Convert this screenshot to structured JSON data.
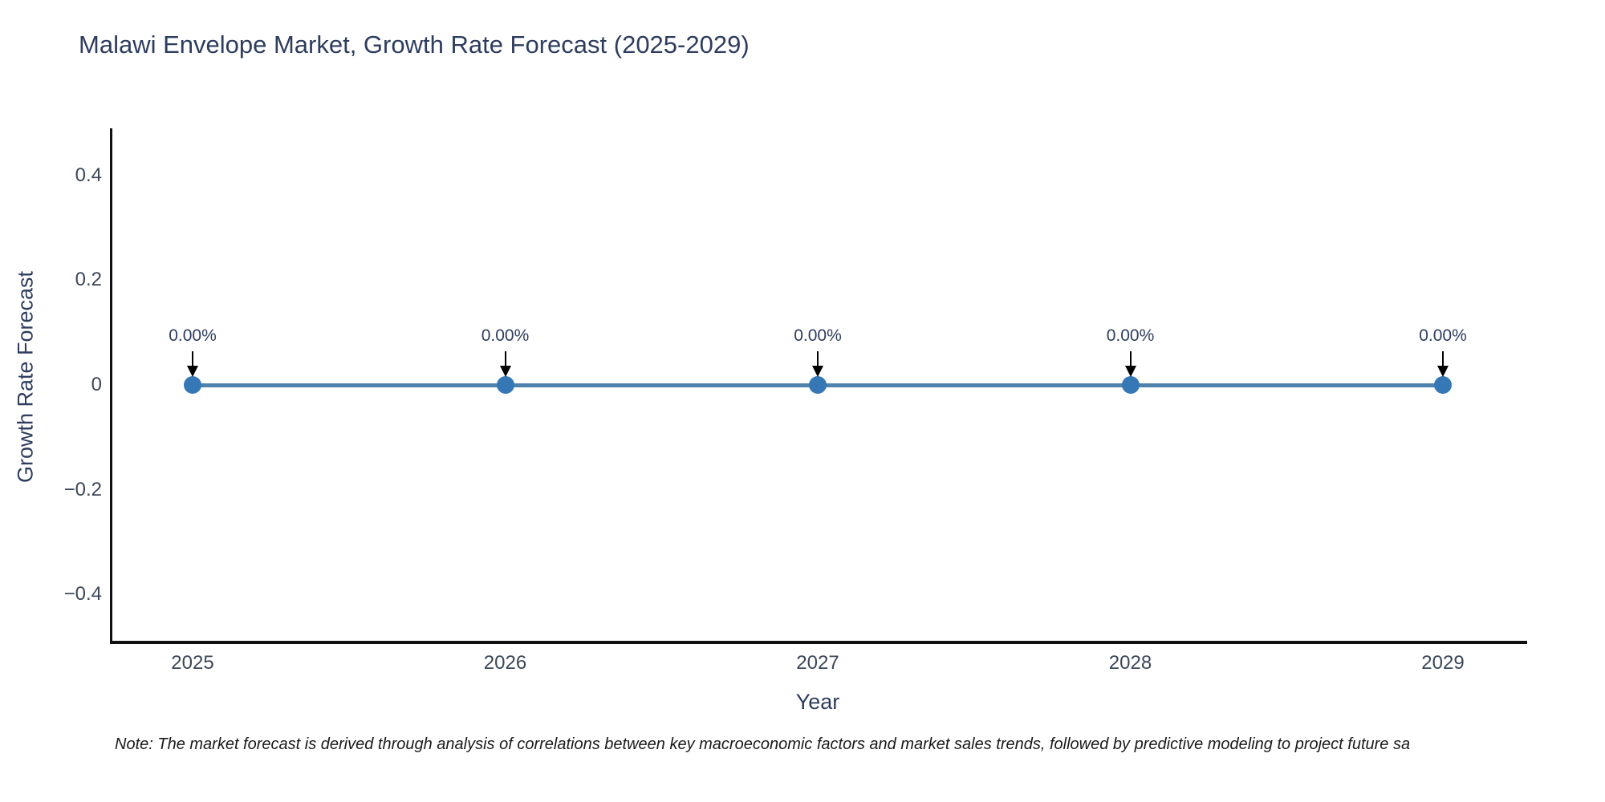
{
  "title": "Malawi Envelope Market, Growth Rate Forecast (2025-2029)",
  "note": "Note: The market forecast is derived through analysis of correlations between key macroeconomic factors and market sales trends, followed by predictive modeling to project future sa",
  "colors": {
    "title_text": "#2e3d5e",
    "tick_text": "#3b4758",
    "line": "#4f81ad",
    "marker": "#3578b5",
    "axis": "#111111",
    "annotation_text": "#2e3d5e",
    "arrow": "#000000",
    "background": "#ffffff"
  },
  "chart_data": {
    "type": "line",
    "title": "Malawi Envelope Market, Growth Rate Forecast (2025-2029)",
    "xlabel": "Year",
    "ylabel": "Growth Rate Forecast",
    "x": [
      2025,
      2026,
      2027,
      2028,
      2029
    ],
    "series": [
      {
        "name": "Growth Rate Forecast",
        "values": [
          0,
          0,
          0,
          0,
          0
        ]
      }
    ],
    "point_labels": [
      "0.00%",
      "0.00%",
      "0.00%",
      "0.00%",
      "0.00%"
    ],
    "xtick_labels": [
      "2025",
      "2026",
      "2027",
      "2028",
      "2029"
    ],
    "yticks": [
      0.4,
      0.2,
      0,
      -0.2,
      -0.4
    ],
    "ytick_labels": [
      "0.4",
      "0.2",
      "0",
      "−0.2",
      "−0.4"
    ],
    "xlim": [
      2025,
      2029
    ],
    "ylim": [
      -0.49,
      0.49
    ],
    "grid": false,
    "legend": "none",
    "marker_style": "circle",
    "annotation_arrows": "down"
  }
}
